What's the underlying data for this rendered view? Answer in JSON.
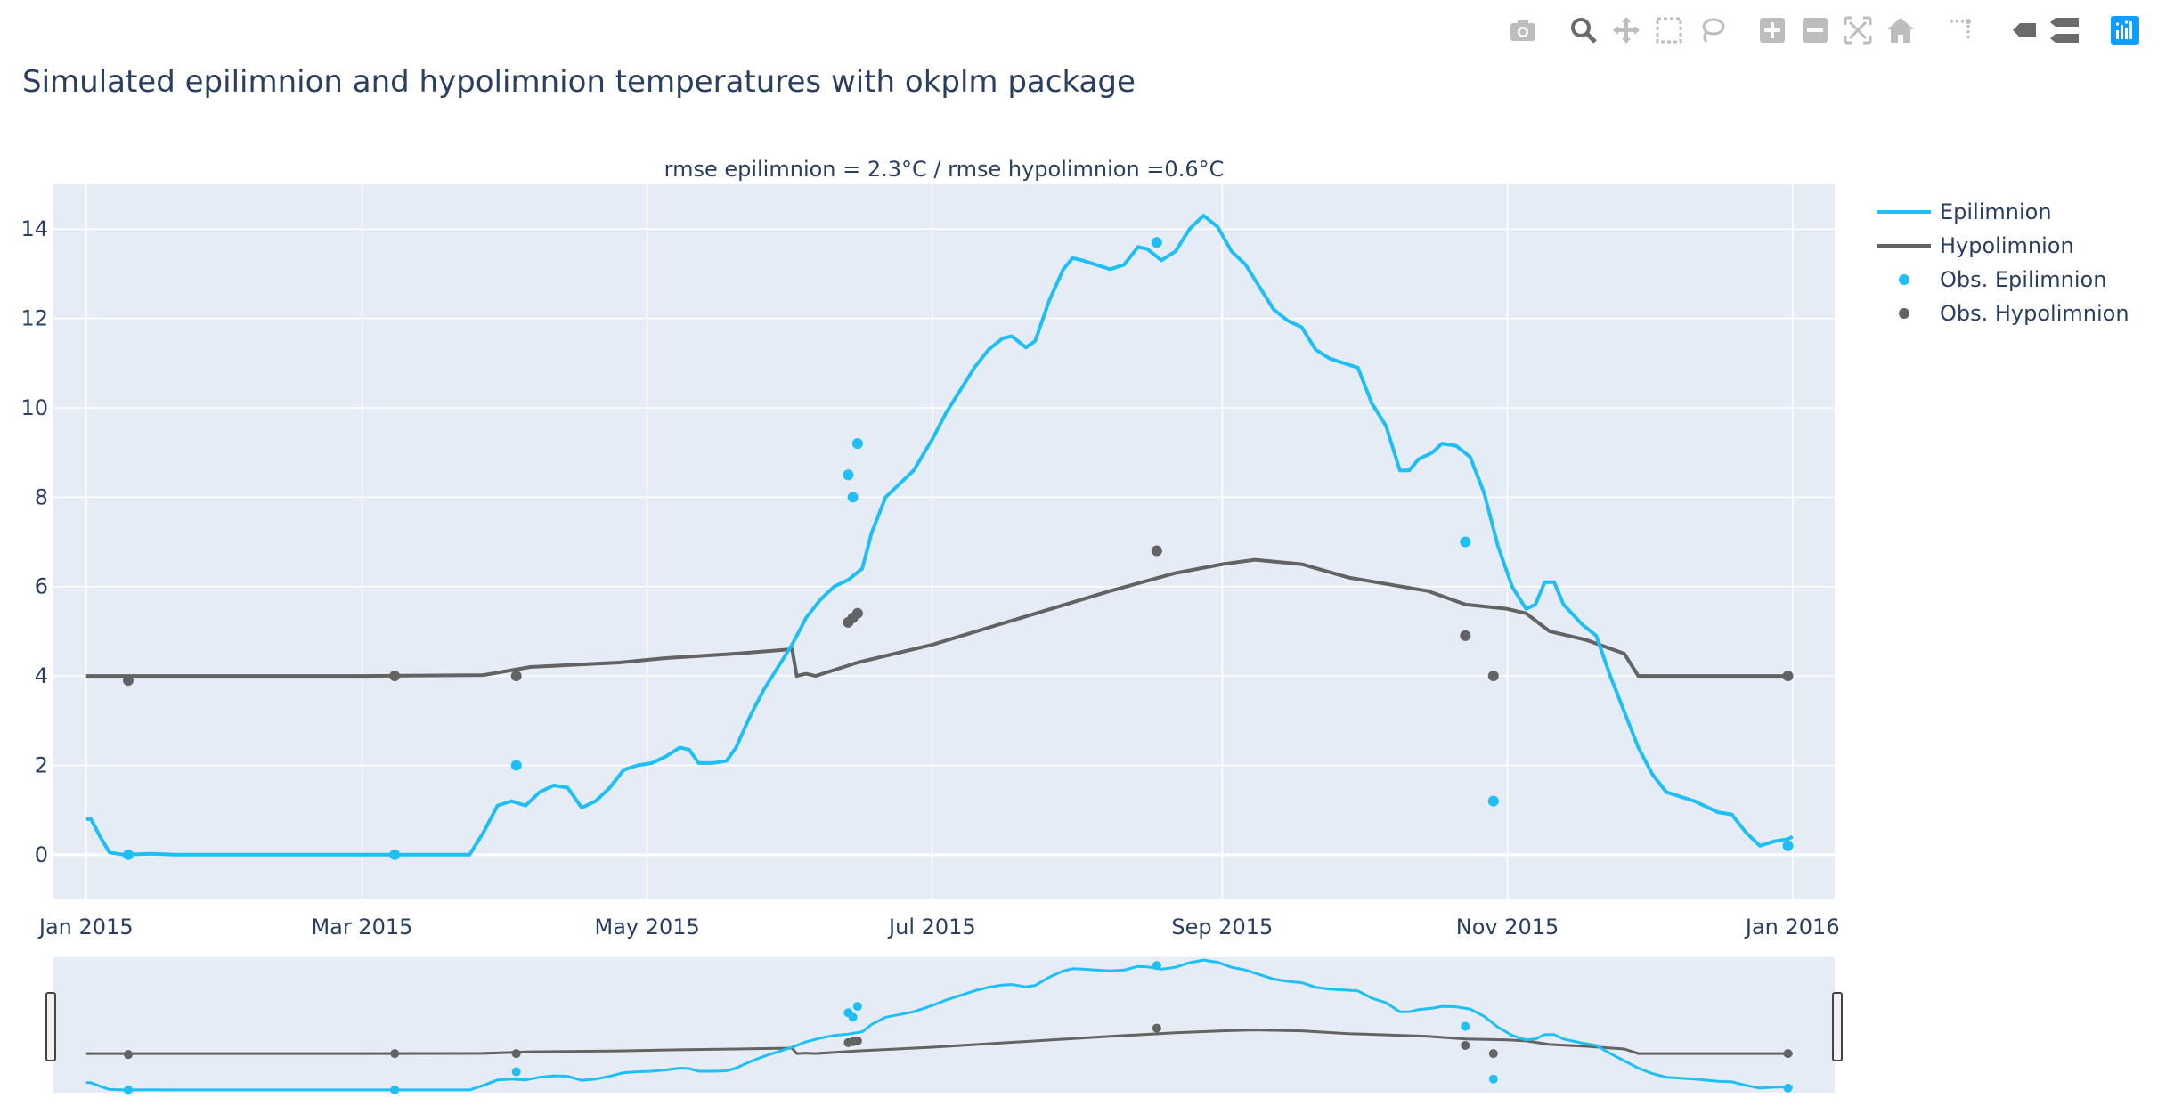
{
  "title": "Simulated epilimnion and hypolimnion temperatures with okplm package",
  "modebar": {
    "icons": [
      "camera-icon",
      "zoom-icon",
      "pan-icon",
      "box-select-icon",
      "lasso-icon",
      "zoom-in-icon",
      "zoom-out-icon",
      "autoscale-icon",
      "reset-axes-icon",
      "spike-lines-icon",
      "hover-closest-icon",
      "hover-compare-icon",
      "plotly-logo-icon"
    ],
    "color": "#bdbdbd",
    "active_color": "#44444499",
    "logo_color": "#119dff"
  },
  "chart_data": {
    "type": "line",
    "title": "rmse epilimnion = 2.3°C / rmse hypolimnion =0.6°C",
    "xlabel": "",
    "ylabel": "",
    "ylim": [
      -1,
      15
    ],
    "xlim": [
      "2014-12-25",
      "2016-01-10"
    ],
    "x_ticks": [
      {
        "date": "2015-01-01",
        "label": "Jan 2015"
      },
      {
        "date": "2015-03-01",
        "label": "Mar 2015"
      },
      {
        "date": "2015-05-01",
        "label": "May 2015"
      },
      {
        "date": "2015-07-01",
        "label": "Jul 2015"
      },
      {
        "date": "2015-09-01",
        "label": "Sep 2015"
      },
      {
        "date": "2015-11-01",
        "label": "Nov 2015"
      },
      {
        "date": "2016-01-01",
        "label": "Jan 2016"
      }
    ],
    "y_ticks": [
      0,
      2,
      4,
      6,
      8,
      10,
      12,
      14
    ],
    "grid": true,
    "legend_position": "top-right",
    "rangeslider": true,
    "colors": {
      "epilimnion": "#1fbff5",
      "hypolimnion": "#636363",
      "plot_bg": "#e5ecf6",
      "grid": "#ffffff"
    },
    "series": [
      {
        "name": "Epilimnion",
        "mode": "lines",
        "points": [
          [
            "2015-01-01",
            0.8
          ],
          [
            "2015-01-02",
            0.8
          ],
          [
            "2015-01-04",
            0.4
          ],
          [
            "2015-01-06",
            0.05
          ],
          [
            "2015-01-09",
            0.0
          ],
          [
            "2015-01-15",
            0.02
          ],
          [
            "2015-01-20",
            0.0
          ],
          [
            "2015-02-01",
            0.0
          ],
          [
            "2015-02-15",
            0.0
          ],
          [
            "2015-03-01",
            0.0
          ],
          [
            "2015-03-15",
            0.0
          ],
          [
            "2015-03-24",
            0.0
          ],
          [
            "2015-03-27",
            0.5
          ],
          [
            "2015-03-30",
            1.1
          ],
          [
            "2015-04-02",
            1.2
          ],
          [
            "2015-04-05",
            1.1
          ],
          [
            "2015-04-08",
            1.4
          ],
          [
            "2015-04-11",
            1.55
          ],
          [
            "2015-04-14",
            1.5
          ],
          [
            "2015-04-17",
            1.05
          ],
          [
            "2015-04-20",
            1.2
          ],
          [
            "2015-04-23",
            1.5
          ],
          [
            "2015-04-26",
            1.9
          ],
          [
            "2015-04-29",
            2.0
          ],
          [
            "2015-05-02",
            2.05
          ],
          [
            "2015-05-05",
            2.2
          ],
          [
            "2015-05-08",
            2.4
          ],
          [
            "2015-05-10",
            2.35
          ],
          [
            "2015-05-12",
            2.05
          ],
          [
            "2015-05-15",
            2.05
          ],
          [
            "2015-05-18",
            2.1
          ],
          [
            "2015-05-20",
            2.4
          ],
          [
            "2015-05-23",
            3.1
          ],
          [
            "2015-05-26",
            3.7
          ],
          [
            "2015-05-29",
            4.2
          ],
          [
            "2015-06-01",
            4.7
          ],
          [
            "2015-06-04",
            5.3
          ],
          [
            "2015-06-07",
            5.7
          ],
          [
            "2015-06-10",
            6.0
          ],
          [
            "2015-06-13",
            6.15
          ],
          [
            "2015-06-16",
            6.4
          ],
          [
            "2015-06-18",
            7.2
          ],
          [
            "2015-06-21",
            8.0
          ],
          [
            "2015-06-24",
            8.3
          ],
          [
            "2015-06-27",
            8.6
          ],
          [
            "2015-07-01",
            9.3
          ],
          [
            "2015-07-04",
            9.9
          ],
          [
            "2015-07-07",
            10.4
          ],
          [
            "2015-07-10",
            10.9
          ],
          [
            "2015-07-13",
            11.3
          ],
          [
            "2015-07-16",
            11.55
          ],
          [
            "2015-07-18",
            11.6
          ],
          [
            "2015-07-21",
            11.35
          ],
          [
            "2015-07-23",
            11.5
          ],
          [
            "2015-07-26",
            12.4
          ],
          [
            "2015-07-29",
            13.1
          ],
          [
            "2015-07-31",
            13.35
          ],
          [
            "2015-08-02",
            13.3
          ],
          [
            "2015-08-05",
            13.2
          ],
          [
            "2015-08-08",
            13.1
          ],
          [
            "2015-08-11",
            13.2
          ],
          [
            "2015-08-14",
            13.6
          ],
          [
            "2015-08-16",
            13.55
          ],
          [
            "2015-08-19",
            13.3
          ],
          [
            "2015-08-22",
            13.5
          ],
          [
            "2015-08-25",
            14.0
          ],
          [
            "2015-08-28",
            14.3
          ],
          [
            "2015-08-31",
            14.05
          ],
          [
            "2015-09-03",
            13.5
          ],
          [
            "2015-09-06",
            13.2
          ],
          [
            "2015-09-09",
            12.7
          ],
          [
            "2015-09-12",
            12.2
          ],
          [
            "2015-09-15",
            11.95
          ],
          [
            "2015-09-18",
            11.8
          ],
          [
            "2015-09-21",
            11.3
          ],
          [
            "2015-09-24",
            11.1
          ],
          [
            "2015-09-27",
            11.0
          ],
          [
            "2015-09-30",
            10.9
          ],
          [
            "2015-10-03",
            10.1
          ],
          [
            "2015-10-06",
            9.6
          ],
          [
            "2015-10-09",
            8.6
          ],
          [
            "2015-10-11",
            8.6
          ],
          [
            "2015-10-13",
            8.85
          ],
          [
            "2015-10-16",
            9.0
          ],
          [
            "2015-10-18",
            9.2
          ],
          [
            "2015-10-21",
            9.15
          ],
          [
            "2015-10-24",
            8.9
          ],
          [
            "2015-10-27",
            8.1
          ],
          [
            "2015-10-30",
            6.9
          ],
          [
            "2015-11-02",
            6.0
          ],
          [
            "2015-11-05",
            5.5
          ],
          [
            "2015-11-07",
            5.6
          ],
          [
            "2015-11-09",
            6.1
          ],
          [
            "2015-11-11",
            6.1
          ],
          [
            "2015-11-13",
            5.6
          ],
          [
            "2015-11-17",
            5.15
          ],
          [
            "2015-11-20",
            4.9
          ],
          [
            "2015-11-23",
            4.0
          ],
          [
            "2015-11-26",
            3.2
          ],
          [
            "2015-11-29",
            2.4
          ],
          [
            "2015-12-02",
            1.8
          ],
          [
            "2015-12-05",
            1.4
          ],
          [
            "2015-12-08",
            1.3
          ],
          [
            "2015-12-11",
            1.2
          ],
          [
            "2015-12-14",
            1.05
          ],
          [
            "2015-12-16",
            0.95
          ],
          [
            "2015-12-19",
            0.9
          ],
          [
            "2015-12-22",
            0.5
          ],
          [
            "2015-12-25",
            0.2
          ],
          [
            "2015-12-28",
            0.3
          ],
          [
            "2015-12-31",
            0.35
          ],
          [
            "2016-01-01",
            0.4
          ]
        ]
      },
      {
        "name": "Hypolimnion",
        "mode": "lines",
        "points": [
          [
            "2015-01-01",
            4.0
          ],
          [
            "2015-03-01",
            4.0
          ],
          [
            "2015-03-27",
            4.02
          ],
          [
            "2015-04-06",
            4.2
          ],
          [
            "2015-04-25",
            4.3
          ],
          [
            "2015-05-05",
            4.4
          ],
          [
            "2015-05-20",
            4.5
          ],
          [
            "2015-06-01",
            4.6
          ],
          [
            "2015-06-02",
            4.0
          ],
          [
            "2015-06-04",
            4.05
          ],
          [
            "2015-06-06",
            4.0
          ],
          [
            "2015-06-15",
            4.3
          ],
          [
            "2015-07-01",
            4.7
          ],
          [
            "2015-07-20",
            5.3
          ],
          [
            "2015-08-08",
            5.9
          ],
          [
            "2015-08-22",
            6.3
          ],
          [
            "2015-09-01",
            6.5
          ],
          [
            "2015-09-08",
            6.6
          ],
          [
            "2015-09-18",
            6.5
          ],
          [
            "2015-09-28",
            6.2
          ],
          [
            "2015-10-15",
            5.9
          ],
          [
            "2015-10-23",
            5.6
          ],
          [
            "2015-11-01",
            5.5
          ],
          [
            "2015-11-05",
            5.4
          ],
          [
            "2015-11-10",
            5.0
          ],
          [
            "2015-11-18",
            4.8
          ],
          [
            "2015-11-26",
            4.5
          ],
          [
            "2015-11-29",
            4.0
          ],
          [
            "2016-01-01",
            4.0
          ]
        ]
      },
      {
        "name": "Obs. Epilimnion",
        "mode": "markers",
        "points": [
          [
            "2015-01-10",
            0.0
          ],
          [
            "2015-03-08",
            0.0
          ],
          [
            "2015-04-03",
            2.0
          ],
          [
            "2015-06-13",
            8.5
          ],
          [
            "2015-06-14",
            8.0
          ],
          [
            "2015-06-15",
            9.2
          ],
          [
            "2015-08-18",
            13.7
          ],
          [
            "2015-10-23",
            7.0
          ],
          [
            "2015-10-29",
            1.2
          ],
          [
            "2015-12-31",
            0.2
          ]
        ]
      },
      {
        "name": "Obs. Hypolimnion",
        "mode": "markers",
        "points": [
          [
            "2015-01-10",
            3.9
          ],
          [
            "2015-03-08",
            4.0
          ],
          [
            "2015-04-03",
            4.0
          ],
          [
            "2015-06-13",
            5.2
          ],
          [
            "2015-06-14",
            5.3
          ],
          [
            "2015-06-15",
            5.4
          ],
          [
            "2015-08-18",
            6.8
          ],
          [
            "2015-10-23",
            4.9
          ],
          [
            "2015-10-29",
            4.0
          ],
          [
            "2015-12-31",
            4.0
          ]
        ]
      }
    ]
  }
}
